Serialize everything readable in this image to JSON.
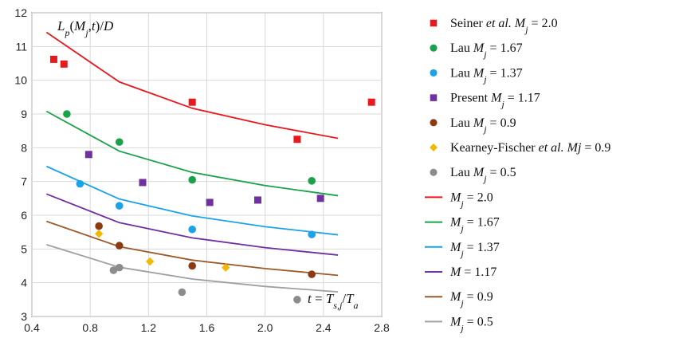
{
  "chart_data": {
    "type": "scatter",
    "xlim": [
      0.4,
      2.8
    ],
    "ylim": [
      3,
      12
    ],
    "xticks": [
      "0.4",
      "0.8",
      "1.2",
      "1.6",
      "2.0",
      "2.4",
      "2.8"
    ],
    "yticks": [
      "3",
      "4",
      "5",
      "6",
      "7",
      "8",
      "9",
      "10",
      "11",
      "12"
    ],
    "grid": true,
    "y_annotation": "L_p(M_j,t)/D",
    "x_annotation": "t = T_s,j/T_a",
    "legend_position": "right",
    "legend": [
      {
        "id": "seiner",
        "parts": [
          [
            "Seiner ",
            ""
          ],
          [
            "et al.",
            "i"
          ],
          [
            " M",
            "i"
          ],
          [
            "j",
            "sub"
          ],
          [
            " = 2.0",
            ""
          ]
        ]
      },
      {
        "id": "lau167",
        "parts": [
          [
            "Lau ",
            ""
          ],
          [
            "M",
            "i"
          ],
          [
            "j",
            "sub"
          ],
          [
            " = 1.67",
            ""
          ]
        ]
      },
      {
        "id": "lau137",
        "parts": [
          [
            "Lau ",
            ""
          ],
          [
            "M",
            "i"
          ],
          [
            "j",
            "sub"
          ],
          [
            " = 1.37",
            ""
          ]
        ]
      },
      {
        "id": "present",
        "parts": [
          [
            "Present ",
            ""
          ],
          [
            "M",
            "i"
          ],
          [
            "j",
            "sub"
          ],
          [
            " = 1.17",
            ""
          ]
        ]
      },
      {
        "id": "lau09",
        "parts": [
          [
            "Lau ",
            ""
          ],
          [
            "M",
            "i"
          ],
          [
            "j",
            "sub"
          ],
          [
            " = 0.9",
            ""
          ]
        ]
      },
      {
        "id": "kearney",
        "parts": [
          [
            "Kearney-Fischer ",
            ""
          ],
          [
            "et al.",
            "i"
          ],
          [
            " Mj",
            "i"
          ],
          [
            " = 0.9",
            ""
          ]
        ]
      },
      {
        "id": "lau05",
        "parts": [
          [
            "Lau ",
            ""
          ],
          [
            "M",
            "i"
          ],
          [
            "j",
            "sub"
          ],
          [
            " = 0.5",
            ""
          ]
        ]
      },
      {
        "id": "fit20",
        "parts": [
          [
            "M",
            "i"
          ],
          [
            "j",
            "sub"
          ],
          [
            " = 2.0",
            ""
          ]
        ]
      },
      {
        "id": "fit167",
        "parts": [
          [
            "M",
            "i"
          ],
          [
            "j",
            "sub"
          ],
          [
            " = 1.67",
            ""
          ]
        ]
      },
      {
        "id": "fit137",
        "parts": [
          [
            "M",
            "i"
          ],
          [
            "j",
            "sub"
          ],
          [
            " = 1.37",
            ""
          ]
        ]
      },
      {
        "id": "fit117",
        "parts": [
          [
            "M",
            "i"
          ],
          [
            " = 1.17",
            ""
          ]
        ]
      },
      {
        "id": "fit09",
        "parts": [
          [
            "M",
            "i"
          ],
          [
            "j",
            "sub"
          ],
          [
            " = 0.9",
            ""
          ]
        ]
      },
      {
        "id": "fit05",
        "parts": [
          [
            "M",
            "i"
          ],
          [
            "j",
            "sub"
          ],
          [
            " = 0.5",
            ""
          ]
        ]
      }
    ],
    "series": [
      {
        "id": "seiner",
        "kind": "scatter",
        "marker": "square",
        "color": "#e8191c",
        "points": [
          [
            0.55,
            10.62
          ],
          [
            0.62,
            10.48
          ],
          [
            1.5,
            9.35
          ],
          [
            2.22,
            8.25
          ],
          [
            2.73,
            9.35
          ]
        ]
      },
      {
        "id": "lau167",
        "kind": "scatter",
        "marker": "circle",
        "color": "#1aa24a",
        "points": [
          [
            0.64,
            9.0
          ],
          [
            1.0,
            8.17
          ],
          [
            1.5,
            7.05
          ],
          [
            2.32,
            7.02
          ]
        ]
      },
      {
        "id": "lau137",
        "kind": "scatter",
        "marker": "circle",
        "color": "#1aa3e8",
        "points": [
          [
            0.73,
            6.93
          ],
          [
            1.0,
            6.28
          ],
          [
            1.5,
            5.58
          ],
          [
            2.32,
            5.43
          ]
        ]
      },
      {
        "id": "present",
        "kind": "scatter",
        "marker": "square",
        "color": "#7030a0",
        "points": [
          [
            0.79,
            7.8
          ],
          [
            1.16,
            6.97
          ],
          [
            1.62,
            6.38
          ],
          [
            1.95,
            6.45
          ],
          [
            2.38,
            6.5
          ]
        ]
      },
      {
        "id": "lau09",
        "kind": "scatter",
        "marker": "circle",
        "color": "#8b3a12",
        "points": [
          [
            0.86,
            5.68
          ],
          [
            1.0,
            5.1
          ],
          [
            1.5,
            4.5
          ],
          [
            2.32,
            4.25
          ]
        ]
      },
      {
        "id": "kearney",
        "kind": "scatter",
        "marker": "diamond",
        "color": "#f5b800",
        "points": [
          [
            0.86,
            5.45
          ],
          [
            1.21,
            4.63
          ],
          [
            1.73,
            4.45
          ]
        ]
      },
      {
        "id": "lau05",
        "kind": "scatter",
        "marker": "circle",
        "color": "#8c8c8c",
        "points": [
          [
            0.96,
            4.37
          ],
          [
            1.0,
            4.45
          ],
          [
            1.43,
            3.72
          ],
          [
            2.22,
            3.5
          ]
        ]
      },
      {
        "id": "fit20",
        "kind": "line",
        "color": "#e8191c",
        "points": [
          [
            0.5,
            11.42
          ],
          [
            1.0,
            9.95
          ],
          [
            1.5,
            9.17
          ],
          [
            2.0,
            8.68
          ],
          [
            2.5,
            8.28
          ]
        ]
      },
      {
        "id": "fit167",
        "kind": "line",
        "color": "#1aa24a",
        "points": [
          [
            0.5,
            9.08
          ],
          [
            1.0,
            7.9
          ],
          [
            1.5,
            7.27
          ],
          [
            2.0,
            6.88
          ],
          [
            2.5,
            6.58
          ]
        ]
      },
      {
        "id": "fit137",
        "kind": "line",
        "color": "#1aa3e8",
        "points": [
          [
            0.5,
            7.45
          ],
          [
            1.0,
            6.48
          ],
          [
            1.5,
            5.98
          ],
          [
            2.0,
            5.66
          ],
          [
            2.5,
            5.42
          ]
        ]
      },
      {
        "id": "fit117",
        "kind": "line",
        "color": "#7030a0",
        "points": [
          [
            0.5,
            6.63
          ],
          [
            1.0,
            5.78
          ],
          [
            1.5,
            5.33
          ],
          [
            2.0,
            5.04
          ],
          [
            2.5,
            4.82
          ]
        ]
      },
      {
        "id": "fit09",
        "kind": "line",
        "color": "#9c5a2a",
        "points": [
          [
            0.5,
            5.82
          ],
          [
            1.0,
            5.07
          ],
          [
            1.5,
            4.67
          ],
          [
            2.0,
            4.42
          ],
          [
            2.5,
            4.22
          ]
        ]
      },
      {
        "id": "fit05",
        "kind": "line",
        "color": "#a0a0a0",
        "points": [
          [
            0.5,
            5.13
          ],
          [
            1.0,
            4.46
          ],
          [
            1.5,
            4.11
          ],
          [
            2.0,
            3.89
          ],
          [
            2.5,
            3.73
          ]
        ]
      }
    ]
  }
}
